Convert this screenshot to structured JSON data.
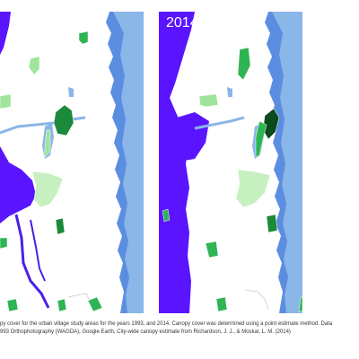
{
  "maps": [
    {
      "id": "1993",
      "year_label": "",
      "colors": {
        "ocean": "#5b8ee0",
        "lake": "#8ab6e8",
        "land": "#ffffff",
        "river": "#4b1fe8",
        "blue_region": "#5a14ff",
        "canopy_very_light": "#c7f0c0",
        "canopy_light": "#9fe49a",
        "canopy_medium": "#2fb454",
        "canopy_dark": "#1b8a3a",
        "canopy_very_dark": "#0c5a22",
        "boundary": "#ffffff"
      }
    },
    {
      "id": "2014",
      "year_label": "2014",
      "colors": {
        "ocean": "#5b8ee0",
        "lake": "#8ab6e8",
        "land": "#ffffff",
        "river": "#4b1fe8",
        "blue_region": "#5a14ff",
        "canopy_very_light": "#c7f0c0",
        "canopy_light": "#9fe49a",
        "canopy_medium": "#2fb454",
        "canopy_dark": "#1b8a3a",
        "canopy_very_dark": "#0c4a1c",
        "boundary": "#ffffff"
      }
    }
  ],
  "caption": {
    "line1": "py cover for the urban village study areas for the years 1993, and 2014. Canopy cover was determined using a point estimate method. Data",
    "line2": "993 Orthophotography (WAGDA), Google Earth, City-wide canopy estimate from Richardson, J. J., & Moskal, L. M. (2014)"
  }
}
